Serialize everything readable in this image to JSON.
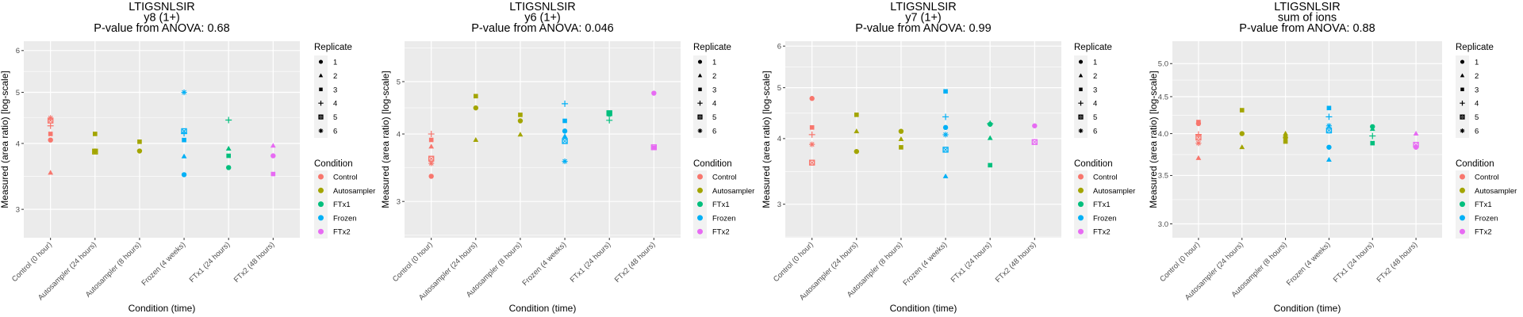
{
  "chart_data": [
    {
      "type": "scatter",
      "title": [
        "LTIGSNLSIR",
        "y8 (1+)",
        "P-value from ANOVA: 0.68"
      ],
      "xlabel": "Condition (time)",
      "ylabel": "Measured (area ratio) [log-scale]",
      "yscale": "log",
      "ylim": [
        2.65,
        6.25
      ],
      "yticks": [
        3,
        4,
        5,
        6
      ],
      "ytick_labels": [
        "3",
        "4",
        "5",
        "6"
      ],
      "grid": true,
      "categories": [
        "Control (0 hour)",
        "Autosampler (24 hours)",
        "Autosampler (8 hours)",
        "Frozen (4 weeks)",
        "FTx1 (24 hours)",
        "FTx2 (48 hours)"
      ],
      "points": [
        {
          "cat": 0,
          "condition": "Control",
          "replicate": 1,
          "y": 4.06
        },
        {
          "cat": 0,
          "condition": "Control",
          "replicate": 2,
          "y": 3.52
        },
        {
          "cat": 0,
          "condition": "Control",
          "replicate": 3,
          "y": 4.17
        },
        {
          "cat": 0,
          "condition": "Control",
          "replicate": 4,
          "y": 4.32
        },
        {
          "cat": 0,
          "condition": "Control",
          "replicate": 5,
          "y": 4.42
        },
        {
          "cat": 0,
          "condition": "Control",
          "replicate": 6,
          "y": 4.47
        },
        {
          "cat": 1,
          "condition": "Autosampler",
          "replicate": 1,
          "y": 3.87
        },
        {
          "cat": 1,
          "condition": "Autosampler",
          "replicate": 3,
          "y": 4.17
        },
        {
          "cat": 1,
          "condition": "Autosampler",
          "replicate": 5,
          "y": 3.86
        },
        {
          "cat": 2,
          "condition": "Autosampler",
          "replicate": 1,
          "y": 3.87
        },
        {
          "cat": 2,
          "condition": "Autosampler",
          "replicate": 3,
          "y": 4.03
        },
        {
          "cat": 3,
          "condition": "Frozen",
          "replicate": 1,
          "y": 3.49
        },
        {
          "cat": 3,
          "condition": "Frozen",
          "replicate": 2,
          "y": 3.78
        },
        {
          "cat": 3,
          "condition": "Frozen",
          "replicate": 3,
          "y": 4.06
        },
        {
          "cat": 3,
          "condition": "Frozen",
          "replicate": 4,
          "y": 4.18
        },
        {
          "cat": 3,
          "condition": "Frozen",
          "replicate": 5,
          "y": 4.22
        },
        {
          "cat": 3,
          "condition": "Frozen",
          "replicate": 6,
          "y": 5.0
        },
        {
          "cat": 4,
          "condition": "FTx1",
          "replicate": 1,
          "y": 3.6
        },
        {
          "cat": 4,
          "condition": "FTx1",
          "replicate": 2,
          "y": 3.91
        },
        {
          "cat": 4,
          "condition": "FTx1",
          "replicate": 3,
          "y": 3.79
        },
        {
          "cat": 4,
          "condition": "FTx1",
          "replicate": 4,
          "y": 4.43
        },
        {
          "cat": 5,
          "condition": "FTx2",
          "replicate": 1,
          "y": 3.79
        },
        {
          "cat": 5,
          "condition": "FTx2",
          "replicate": 2,
          "y": 3.96
        },
        {
          "cat": 5,
          "condition": "FTx2",
          "replicate": 3,
          "y": 3.5
        }
      ]
    },
    {
      "type": "scatter",
      "title": [
        "LTIGSNLSIR",
        "y6 (1+)",
        "P-value from ANOVA: 0.046"
      ],
      "xlabel": "Condition (time)",
      "ylabel": "Measured (area ratio) [log-scale]",
      "yscale": "log",
      "ylim": [
        2.57,
        5.94
      ],
      "yticks": [
        3,
        4,
        5
      ],
      "ytick_labels": [
        "3",
        "4",
        "5"
      ],
      "grid": true,
      "categories": [
        "Control (0 hour)",
        "Autosampler (24 hours)",
        "Autosampler (8 hours)",
        "Frozen (4 weeks)",
        "FTx1 (24 hours)",
        "FTx2 (48 hours)"
      ],
      "points": [
        {
          "cat": 0,
          "condition": "Control",
          "replicate": 1,
          "y": 3.34
        },
        {
          "cat": 0,
          "condition": "Control",
          "replicate": 2,
          "y": 3.79
        },
        {
          "cat": 0,
          "condition": "Control",
          "replicate": 3,
          "y": 3.9
        },
        {
          "cat": 0,
          "condition": "Control",
          "replicate": 4,
          "y": 4.0
        },
        {
          "cat": 0,
          "condition": "Control",
          "replicate": 5,
          "y": 3.6
        },
        {
          "cat": 0,
          "condition": "Control",
          "replicate": 6,
          "y": 3.53
        },
        {
          "cat": 1,
          "condition": "Autosampler",
          "replicate": 1,
          "y": 4.47
        },
        {
          "cat": 1,
          "condition": "Autosampler",
          "replicate": 2,
          "y": 3.9
        },
        {
          "cat": 1,
          "condition": "Autosampler",
          "replicate": 3,
          "y": 4.7
        },
        {
          "cat": 2,
          "condition": "Autosampler",
          "replicate": 1,
          "y": 4.23
        },
        {
          "cat": 2,
          "condition": "Autosampler",
          "replicate": 2,
          "y": 3.99
        },
        {
          "cat": 2,
          "condition": "Autosampler",
          "replicate": 3,
          "y": 4.34
        },
        {
          "cat": 3,
          "condition": "Frozen",
          "replicate": 1,
          "y": 4.05
        },
        {
          "cat": 3,
          "condition": "Frozen",
          "replicate": 2,
          "y": 3.96
        },
        {
          "cat": 3,
          "condition": "Frozen",
          "replicate": 3,
          "y": 4.23
        },
        {
          "cat": 3,
          "condition": "Frozen",
          "replicate": 4,
          "y": 4.55
        },
        {
          "cat": 3,
          "condition": "Frozen",
          "replicate": 5,
          "y": 3.88
        },
        {
          "cat": 3,
          "condition": "Frozen",
          "replicate": 6,
          "y": 3.56
        },
        {
          "cat": 4,
          "condition": "FTx1",
          "replicate": 1,
          "y": 4.35
        },
        {
          "cat": 4,
          "condition": "FTx1",
          "replicate": 3,
          "y": 4.38
        },
        {
          "cat": 4,
          "condition": "FTx1",
          "replicate": 4,
          "y": 4.24
        },
        {
          "cat": 4,
          "condition": "FTx1",
          "replicate": 5,
          "y": 4.37
        },
        {
          "cat": 5,
          "condition": "FTx2",
          "replicate": 1,
          "y": 4.76
        },
        {
          "cat": 5,
          "condition": "FTx2",
          "replicate": 3,
          "y": 3.77
        },
        {
          "cat": 5,
          "condition": "FTx2",
          "replicate": 5,
          "y": 3.78
        }
      ]
    },
    {
      "type": "scatter",
      "title": [
        "LTIGSNLSIR",
        "y7 (1+)",
        "P-value from ANOVA: 0.99"
      ],
      "xlabel": "Condition (time)",
      "ylabel": "Measured (area ratio) [log-scale]",
      "yscale": "log",
      "ylim": [
        2.59,
        6.13
      ],
      "yticks": [
        3,
        4,
        5,
        6
      ],
      "ytick_labels": [
        "3",
        "4",
        "5",
        "6"
      ],
      "grid": true,
      "categories": [
        "Control (0 hour)",
        "Autosampler (24 hours)",
        "Autosampler (8 hours)",
        "Frozen (4 weeks)",
        "FTx1 (24 hours)",
        "FTx2 (48 hours)"
      ],
      "points": [
        {
          "cat": 0,
          "condition": "Control",
          "replicate": 1,
          "y": 4.77
        },
        {
          "cat": 0,
          "condition": "Control",
          "replicate": 3,
          "y": 4.2
        },
        {
          "cat": 0,
          "condition": "Control",
          "replicate": 4,
          "y": 4.07
        },
        {
          "cat": 0,
          "condition": "Control",
          "replicate": 5,
          "y": 3.6
        },
        {
          "cat": 0,
          "condition": "Control",
          "replicate": 6,
          "y": 3.9
        },
        {
          "cat": 1,
          "condition": "Autosampler",
          "replicate": 1,
          "y": 3.78
        },
        {
          "cat": 1,
          "condition": "Autosampler",
          "replicate": 2,
          "y": 4.13
        },
        {
          "cat": 1,
          "condition": "Autosampler",
          "replicate": 3,
          "y": 4.44
        },
        {
          "cat": 2,
          "condition": "Autosampler",
          "replicate": 1,
          "y": 4.13
        },
        {
          "cat": 2,
          "condition": "Autosampler",
          "replicate": 2,
          "y": 3.99
        },
        {
          "cat": 2,
          "condition": "Autosampler",
          "replicate": 3,
          "y": 3.85
        },
        {
          "cat": 3,
          "condition": "Frozen",
          "replicate": 1,
          "y": 4.2
        },
        {
          "cat": 3,
          "condition": "Frozen",
          "replicate": 2,
          "y": 3.39
        },
        {
          "cat": 3,
          "condition": "Frozen",
          "replicate": 3,
          "y": 4.92
        },
        {
          "cat": 3,
          "condition": "Frozen",
          "replicate": 4,
          "y": 4.4
        },
        {
          "cat": 3,
          "condition": "Frozen",
          "replicate": 5,
          "y": 3.81
        },
        {
          "cat": 3,
          "condition": "Frozen",
          "replicate": 6,
          "y": 4.07
        },
        {
          "cat": 4,
          "condition": "FTx1",
          "replicate": 1,
          "y": 4.26
        },
        {
          "cat": 4,
          "condition": "FTx1",
          "replicate": 2,
          "y": 4.01
        },
        {
          "cat": 4,
          "condition": "FTx1",
          "replicate": 3,
          "y": 3.56
        },
        {
          "cat": 4,
          "condition": "FTx1",
          "replicate": 4,
          "y": 4.27
        },
        {
          "cat": 5,
          "condition": "FTx2",
          "replicate": 1,
          "y": 4.23
        },
        {
          "cat": 5,
          "condition": "FTx2",
          "replicate": 5,
          "y": 3.94
        }
      ]
    },
    {
      "type": "scatter",
      "title": [
        "LTIGSNLSIR",
        "sum of ions",
        "P-value from ANOVA: 0.88"
      ],
      "xlabel": "Condition (time)",
      "ylabel": "Measured (area ratio) [log-scale]",
      "yscale": "log",
      "ylim": [
        2.87,
        5.37
      ],
      "yticks": [
        3.0,
        3.5,
        4.0,
        4.5,
        5.0
      ],
      "ytick_labels": [
        "3.0",
        "3.5",
        "4.0",
        "4.5",
        "5.0"
      ],
      "grid": true,
      "categories": [
        "Control (0 hour)",
        "Autosampler (24 hours)",
        "Autosampler (8 hours)",
        "Frozen (4 weeks)",
        "FTx1 (24 hours)",
        "FTx2 (48 hours)"
      ],
      "points": [
        {
          "cat": 0,
          "condition": "Control",
          "replicate": 1,
          "y": 4.13
        },
        {
          "cat": 0,
          "condition": "Control",
          "replicate": 2,
          "y": 3.7
        },
        {
          "cat": 0,
          "condition": "Control",
          "replicate": 3,
          "y": 4.15
        },
        {
          "cat": 0,
          "condition": "Control",
          "replicate": 4,
          "y": 3.99
        },
        {
          "cat": 0,
          "condition": "Control",
          "replicate": 5,
          "y": 3.95
        },
        {
          "cat": 0,
          "condition": "Control",
          "replicate": 6,
          "y": 3.88
        },
        {
          "cat": 1,
          "condition": "Autosampler",
          "replicate": 1,
          "y": 4.0
        },
        {
          "cat": 1,
          "condition": "Autosampler",
          "replicate": 2,
          "y": 3.83
        },
        {
          "cat": 1,
          "condition": "Autosampler",
          "replicate": 3,
          "y": 4.31
        },
        {
          "cat": 2,
          "condition": "Autosampler",
          "replicate": 1,
          "y": 3.95
        },
        {
          "cat": 2,
          "condition": "Autosampler",
          "replicate": 2,
          "y": 4.0
        },
        {
          "cat": 2,
          "condition": "Autosampler",
          "replicate": 3,
          "y": 3.9
        },
        {
          "cat": 3,
          "condition": "Frozen",
          "replicate": 1,
          "y": 3.83
        },
        {
          "cat": 3,
          "condition": "Frozen",
          "replicate": 2,
          "y": 3.68
        },
        {
          "cat": 3,
          "condition": "Frozen",
          "replicate": 3,
          "y": 4.34
        },
        {
          "cat": 3,
          "condition": "Frozen",
          "replicate": 4,
          "y": 4.22
        },
        {
          "cat": 3,
          "condition": "Frozen",
          "replicate": 5,
          "y": 4.04
        },
        {
          "cat": 3,
          "condition": "Frozen",
          "replicate": 6,
          "y": 4.1
        },
        {
          "cat": 4,
          "condition": "FTx1",
          "replicate": 1,
          "y": 4.09
        },
        {
          "cat": 4,
          "condition": "FTx1",
          "replicate": 2,
          "y": 4.06
        },
        {
          "cat": 4,
          "condition": "FTx1",
          "replicate": 3,
          "y": 3.88
        },
        {
          "cat": 4,
          "condition": "FTx1",
          "replicate": 4,
          "y": 3.97
        },
        {
          "cat": 5,
          "condition": "FTx2",
          "replicate": 1,
          "y": 3.83
        },
        {
          "cat": 5,
          "condition": "FTx2",
          "replicate": 2,
          "y": 4.0
        },
        {
          "cat": 5,
          "condition": "FTx2",
          "replicate": 5,
          "y": 3.86
        }
      ]
    }
  ],
  "legend": {
    "placement": "right",
    "replicate_title": "Replicate",
    "replicates": [
      {
        "label": "1",
        "shape": "circle"
      },
      {
        "label": "2",
        "shape": "triangle"
      },
      {
        "label": "3",
        "shape": "square"
      },
      {
        "label": "4",
        "shape": "plus"
      },
      {
        "label": "5",
        "shape": "boxed-square"
      },
      {
        "label": "6",
        "shape": "asterisk"
      }
    ],
    "condition_title": "Condition",
    "conditions": [
      {
        "label": "Control",
        "color": "#F8766D"
      },
      {
        "label": "Autosampler",
        "color": "#A3A500"
      },
      {
        "label": "FTx1",
        "color": "#00BF7D"
      },
      {
        "label": "Frozen",
        "color": "#00B0F6"
      },
      {
        "label": "FTx2",
        "color": "#E76BF3"
      }
    ]
  },
  "colors": {
    "panel_background": "#EBEBEB",
    "grid": "#FFFFFF",
    "tick_text": "#4D4D4D"
  }
}
